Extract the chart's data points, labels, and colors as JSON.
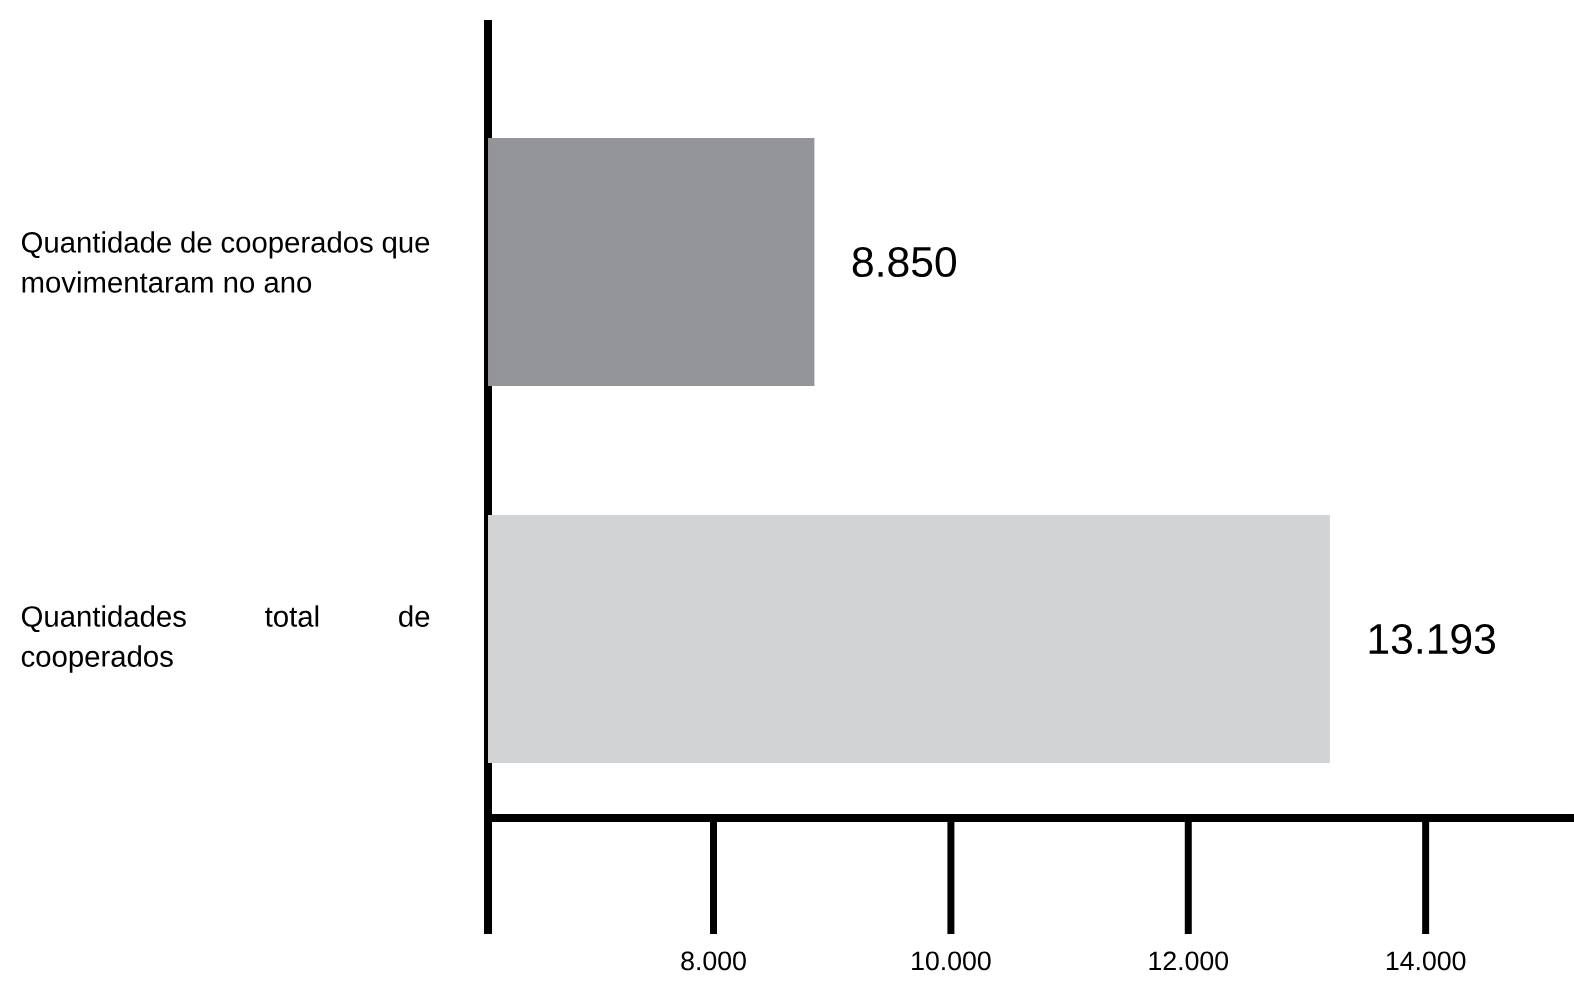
{
  "chart_data": {
    "type": "bar",
    "orientation": "horizontal",
    "categories": [
      "Quantidade de cooperados que movimentaram no ano",
      "Quantidades total de cooperados"
    ],
    "values": [
      8850,
      13193
    ],
    "colors": [
      "#939598",
      "#d1d3d4"
    ],
    "value_labels": [
      "8.850",
      "13.193"
    ],
    "xlim": [
      6100,
      15250
    ],
    "xticks": [
      {
        "value": 8000,
        "label": "8.000"
      },
      {
        "value": 10000,
        "label": "10.000"
      },
      {
        "value": 12000,
        "label": "12.000"
      },
      {
        "value": 14000,
        "label": "14.000"
      }
    ]
  }
}
